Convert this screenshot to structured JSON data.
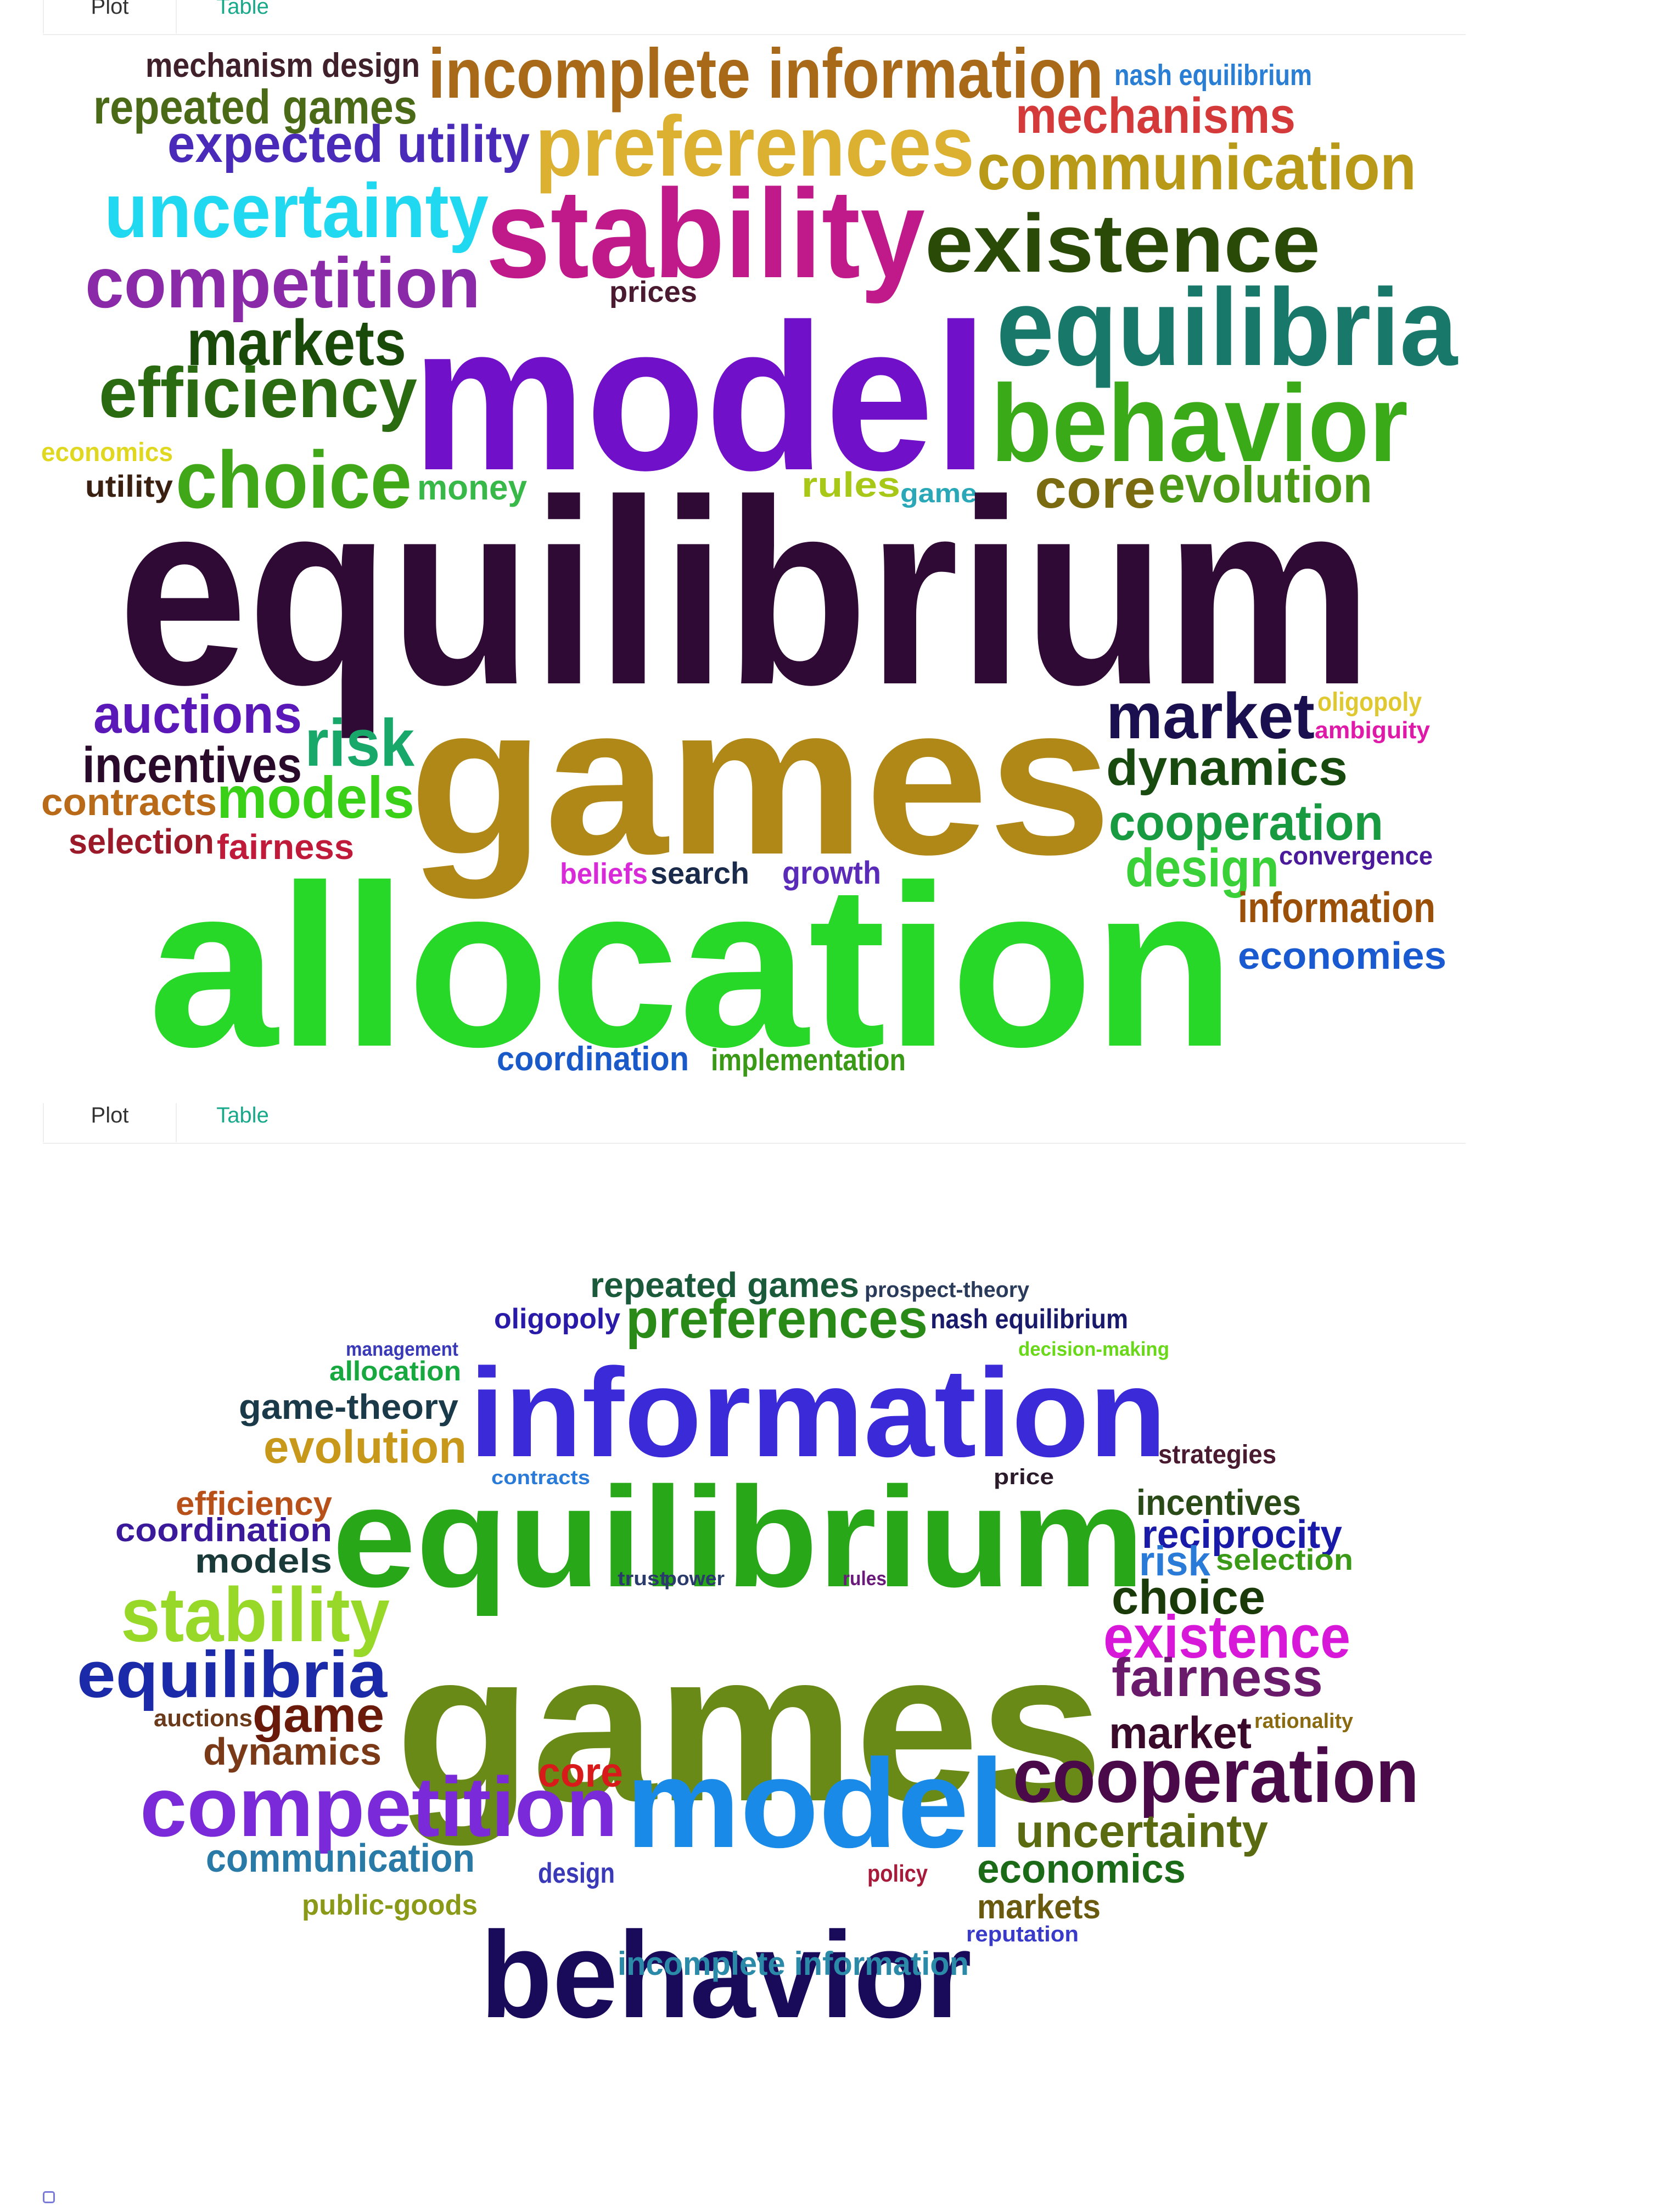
{
  "panels": [
    {
      "tabs": [
        {
          "label": "Plot",
          "active": true
        },
        {
          "label": "Table",
          "active": false
        }
      ],
      "words": [
        {
          "text": "mechanism design",
          "color": "#40202a"
        },
        {
          "text": "incomplete information",
          "color": "#a86a18"
        },
        {
          "text": "nash equilibrium",
          "color": "#2a7fd4"
        },
        {
          "text": "repeated games",
          "color": "#4a6a18"
        },
        {
          "text": "mechanisms",
          "color": "#d43a3a"
        },
        {
          "text": "expected utility",
          "color": "#4a2ab8"
        },
        {
          "text": "preferences",
          "color": "#dcb030"
        },
        {
          "text": "communication",
          "color": "#b89a18"
        },
        {
          "text": "uncertainty",
          "color": "#20d8f0"
        },
        {
          "text": "stability",
          "color": "#c01a8a"
        },
        {
          "text": "existence",
          "color": "#2a4a08"
        },
        {
          "text": "competition",
          "color": "#8a2aa8"
        },
        {
          "text": "prices",
          "color": "#4a1a30"
        },
        {
          "text": "equilibria",
          "color": "#18786a"
        },
        {
          "text": "markets",
          "color": "#1a4a0a"
        },
        {
          "text": "model",
          "color": "#7010c8"
        },
        {
          "text": "efficiency",
          "color": "#2a6a10"
        },
        {
          "text": "behavior",
          "color": "#3aaa18"
        },
        {
          "text": "economics",
          "color": "#e0d820"
        },
        {
          "text": "utility",
          "color": "#3a2010"
        },
        {
          "text": "choice",
          "color": "#40a818"
        },
        {
          "text": "money",
          "color": "#38b848"
        },
        {
          "text": "rules",
          "color": "#a8c818"
        },
        {
          "text": "game",
          "color": "#2aa8b8"
        },
        {
          "text": "core",
          "color": "#7a6a10"
        },
        {
          "text": "evolution",
          "color": "#4a9a18"
        },
        {
          "text": "equilibrium",
          "color": "#2e0a34"
        },
        {
          "text": "auctions",
          "color": "#5a18b8"
        },
        {
          "text": "risk",
          "color": "#18a86a"
        },
        {
          "text": "games",
          "color": "#b08818"
        },
        {
          "text": "market",
          "color": "#1a1050"
        },
        {
          "text": "oligopoly",
          "color": "#e0c830"
        },
        {
          "text": "ambiguity",
          "color": "#e01aa8"
        },
        {
          "text": "incentives",
          "color": "#2a0a2a"
        },
        {
          "text": "dynamics",
          "color": "#184a10"
        },
        {
          "text": "contracts",
          "color": "#b86a18"
        },
        {
          "text": "models",
          "color": "#3ad018"
        },
        {
          "text": "cooperation",
          "color": "#189a40"
        },
        {
          "text": "selection",
          "color": "#9a1a2a"
        },
        {
          "text": "fairness",
          "color": "#c01a3a"
        },
        {
          "text": "design",
          "color": "#3ad038"
        },
        {
          "text": "convergence",
          "color": "#4a1a9a"
        },
        {
          "text": "beliefs",
          "color": "#d82ad8"
        },
        {
          "text": "search",
          "color": "#1a2a4a"
        },
        {
          "text": "growth",
          "color": "#5a2ab8"
        },
        {
          "text": "allocation",
          "color": "#28d828"
        },
        {
          "text": "information",
          "color": "#9a5008"
        },
        {
          "text": "economies",
          "color": "#1a5ad0"
        },
        {
          "text": "coordination",
          "color": "#1a5ac8"
        },
        {
          "text": "implementation",
          "color": "#3a9a18"
        }
      ]
    },
    {
      "tabs": [
        {
          "label": "Plot",
          "active": true
        },
        {
          "label": "Table",
          "active": false
        }
      ],
      "words": [
        {
          "text": "repeated games",
          "color": "#1a5a3a"
        },
        {
          "text": "prospect-theory",
          "color": "#2a3a5a"
        },
        {
          "text": "oligopoly",
          "color": "#2a1aa8"
        },
        {
          "text": "preferences",
          "color": "#2a8a18"
        },
        {
          "text": "nash equilibrium",
          "color": "#1a1a6a"
        },
        {
          "text": "management",
          "color": "#3a3ab8"
        },
        {
          "text": "decision-making",
          "color": "#68d818"
        },
        {
          "text": "allocation",
          "color": "#18a840"
        },
        {
          "text": "information",
          "color": "#3a2ad8"
        },
        {
          "text": "game-theory",
          "color": "#1a3a4a"
        },
        {
          "text": "evolution",
          "color": "#c8981a"
        },
        {
          "text": "strategies",
          "color": "#4a1a30"
        },
        {
          "text": "contracts",
          "color": "#2a7ad8"
        },
        {
          "text": "price",
          "color": "#2a1a2a"
        },
        {
          "text": "efficiency",
          "color": "#b8501a"
        },
        {
          "text": "incentives",
          "color": "#2a4a18"
        },
        {
          "text": "equilibrium",
          "color": "#28a818"
        },
        {
          "text": "coordination",
          "color": "#3a1a9a"
        },
        {
          "text": "reciprocity",
          "color": "#1a1aa8"
        },
        {
          "text": "risk",
          "color": "#2a7ad8"
        },
        {
          "text": "selection",
          "color": "#3a9a18"
        },
        {
          "text": "models",
          "color": "#1a3a3a"
        },
        {
          "text": "trust",
          "color": "#2a3a6a"
        },
        {
          "text": "power",
          "color": "#2a3a6a"
        },
        {
          "text": "rules",
          "color": "#6a1a7a"
        },
        {
          "text": "choice",
          "color": "#1a3a0a"
        },
        {
          "text": "stability",
          "color": "#98d828"
        },
        {
          "text": "games",
          "color": "#6a8a18"
        },
        {
          "text": "existence",
          "color": "#d818d8"
        },
        {
          "text": "equilibria",
          "color": "#1a2aa8"
        },
        {
          "text": "fairness",
          "color": "#6a1a6a"
        },
        {
          "text": "auctions",
          "color": "#6a3a1a"
        },
        {
          "text": "game",
          "color": "#6a1a0a"
        },
        {
          "text": "rationality",
          "color": "#8a6a10"
        },
        {
          "text": "market",
          "color": "#3a0a2a"
        },
        {
          "text": "dynamics",
          "color": "#7a3a18"
        },
        {
          "text": "core",
          "color": "#d81a1a"
        },
        {
          "text": "cooperation",
          "color": "#4a0a4a"
        },
        {
          "text": "competition",
          "color": "#7a2ad8"
        },
        {
          "text": "model",
          "color": "#1a8ae8"
        },
        {
          "text": "uncertainty",
          "color": "#5a6a10"
        },
        {
          "text": "communication",
          "color": "#2a7aa8"
        },
        {
          "text": "design",
          "color": "#3a3ab8"
        },
        {
          "text": "policy",
          "color": "#a81a3a"
        },
        {
          "text": "economics",
          "color": "#1a6a18"
        },
        {
          "text": "public-goods",
          "color": "#8a9a18"
        },
        {
          "text": "behavior",
          "color": "#1a0a5a"
        },
        {
          "text": "markets",
          "color": "#6a5a10"
        },
        {
          "text": "reputation",
          "color": "#3a3ac8"
        },
        {
          "text": "incomplete information",
          "color": "#2a8aa8"
        }
      ]
    }
  ]
}
